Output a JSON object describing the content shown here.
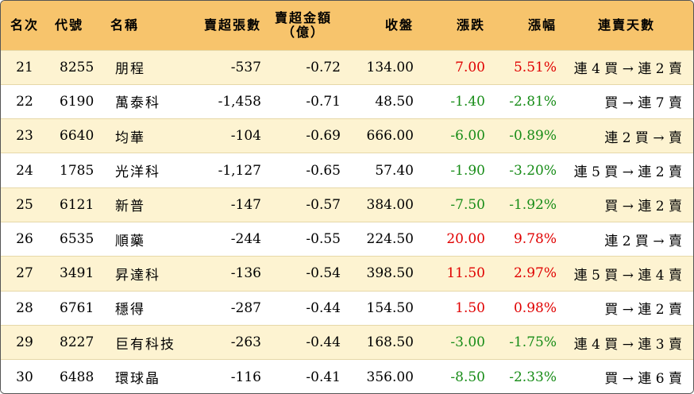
{
  "headers": {
    "rank": "名次",
    "code": "代號",
    "name": "名稱",
    "sheets": "賣超張數",
    "amount_line1": "賣超金額",
    "amount_line2": "（億）",
    "close": "收盤",
    "change": "漲跌",
    "pct": "漲幅",
    "days": "連賣天數"
  },
  "colors": {
    "header_bg": "#f7c46c",
    "odd_row_bg": "#fdf3d1",
    "up": "#e00000",
    "down": "#178c17"
  },
  "rows": [
    {
      "rank": "21",
      "code": "8255",
      "name": "朋程",
      "sheets": "-537",
      "amount": "-0.72",
      "close": "134.00",
      "change": "7.00",
      "pct": "5.51%",
      "dir": "up",
      "days": "連 4 買 → 連 2 賣"
    },
    {
      "rank": "22",
      "code": "6190",
      "name": "萬泰科",
      "sheets": "-1,458",
      "amount": "-0.71",
      "close": "48.50",
      "change": "-1.40",
      "pct": "-2.81%",
      "dir": "down",
      "days": "買 → 連 7 賣"
    },
    {
      "rank": "23",
      "code": "6640",
      "name": "均華",
      "sheets": "-104",
      "amount": "-0.69",
      "close": "666.00",
      "change": "-6.00",
      "pct": "-0.89%",
      "dir": "down",
      "days": "連 2 買 → 賣"
    },
    {
      "rank": "24",
      "code": "1785",
      "name": "光洋科",
      "sheets": "-1,127",
      "amount": "-0.65",
      "close": "57.40",
      "change": "-1.90",
      "pct": "-3.20%",
      "dir": "down",
      "days": "連 5 買 → 連 2 賣"
    },
    {
      "rank": "25",
      "code": "6121",
      "name": "新普",
      "sheets": "-147",
      "amount": "-0.57",
      "close": "384.00",
      "change": "-7.50",
      "pct": "-1.92%",
      "dir": "down",
      "days": "買 → 連 2 賣"
    },
    {
      "rank": "26",
      "code": "6535",
      "name": "順藥",
      "sheets": "-244",
      "amount": "-0.55",
      "close": "224.50",
      "change": "20.00",
      "pct": "9.78%",
      "dir": "up",
      "days": "連 2 買 → 賣"
    },
    {
      "rank": "27",
      "code": "3491",
      "name": "昇達科",
      "sheets": "-136",
      "amount": "-0.54",
      "close": "398.50",
      "change": "11.50",
      "pct": "2.97%",
      "dir": "up",
      "days": "連 5 買 → 連 4 賣"
    },
    {
      "rank": "28",
      "code": "6761",
      "name": "穩得",
      "sheets": "-287",
      "amount": "-0.44",
      "close": "154.50",
      "change": "1.50",
      "pct": "0.98%",
      "dir": "up",
      "days": "買 → 連 2 賣"
    },
    {
      "rank": "29",
      "code": "8227",
      "name": "巨有科技",
      "sheets": "-263",
      "amount": "-0.44",
      "close": "168.50",
      "change": "-3.00",
      "pct": "-1.75%",
      "dir": "down",
      "days": "連 4 買 → 連 3 賣"
    },
    {
      "rank": "30",
      "code": "6488",
      "name": "環球晶",
      "sheets": "-116",
      "amount": "-0.41",
      "close": "356.00",
      "change": "-8.50",
      "pct": "-2.33%",
      "dir": "down",
      "days": "買 → 連 6 賣"
    }
  ]
}
